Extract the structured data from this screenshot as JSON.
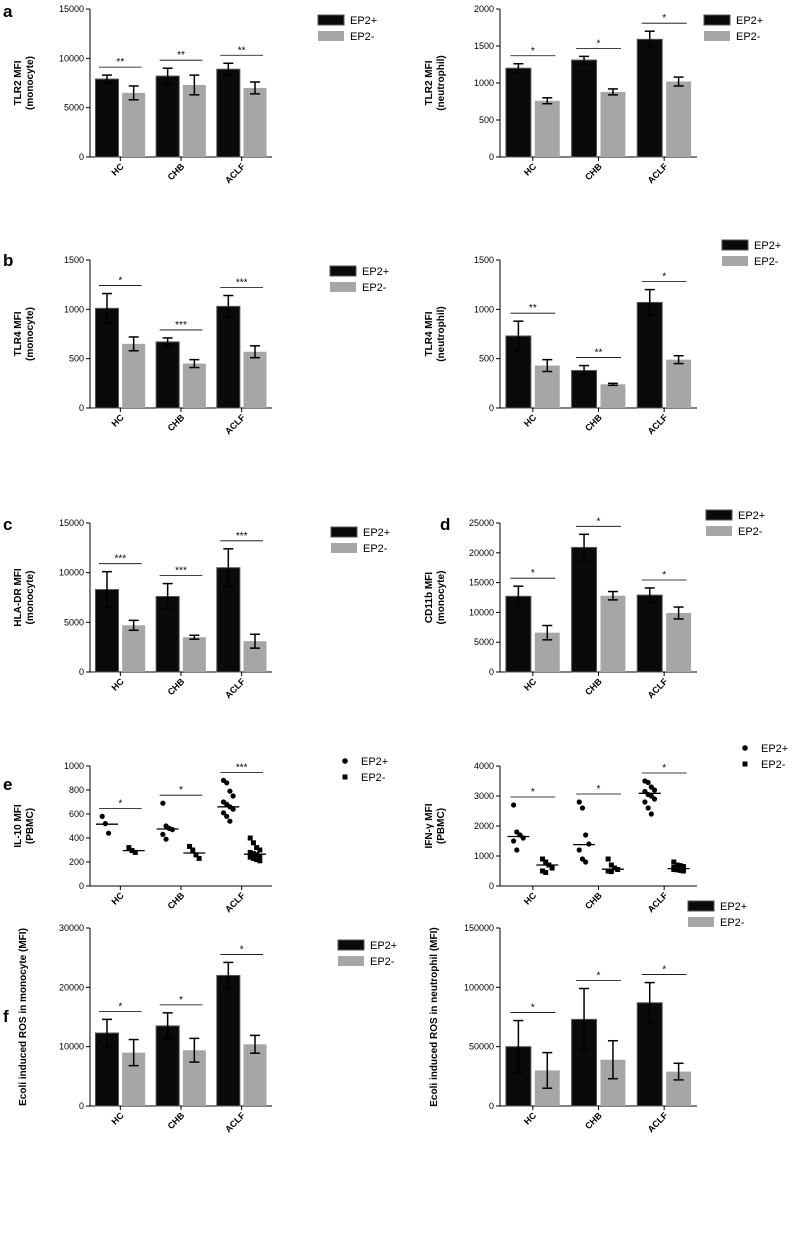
{
  "figure": {
    "panel_letters": [
      "a",
      "b",
      "c",
      "d",
      "e",
      "f"
    ],
    "colors": {
      "ep2_plus": "#0a0a0a",
      "ep2_minus": "#a6a6a6",
      "axis": "#000000"
    }
  },
  "chart_data": [
    {
      "id": "a-left",
      "type": "bar",
      "panel": "a",
      "categories": [
        "HC",
        "CHB",
        "ACLF"
      ],
      "series": [
        {
          "name": "EP2+",
          "values": [
            7900,
            8200,
            8900
          ],
          "errors": [
            400,
            800,
            600
          ]
        },
        {
          "name": "EP2-",
          "values": [
            6500,
            7300,
            7000
          ],
          "errors": [
            700,
            1000,
            600
          ]
        }
      ],
      "ylabel": [
        "TLR2 MFI",
        "(monocyte)"
      ],
      "ylim": [
        0,
        15000
      ],
      "yticks": [
        0,
        5000,
        10000,
        15000
      ],
      "significance": [
        "**",
        "**",
        "**"
      ],
      "legend": "right"
    },
    {
      "id": "a-right",
      "type": "bar",
      "panel": "a",
      "categories": [
        "HC",
        "CHB",
        "ACLF"
      ],
      "series": [
        {
          "name": "EP2+",
          "values": [
            1200,
            1310,
            1590
          ],
          "errors": [
            60,
            50,
            110
          ]
        },
        {
          "name": "EP2-",
          "values": [
            760,
            880,
            1020
          ],
          "errors": [
            40,
            40,
            60
          ]
        }
      ],
      "ylabel": [
        "TLR2 MFI",
        "(neutrophil)"
      ],
      "ylim": [
        0,
        2000
      ],
      "yticks": [
        0,
        500,
        1000,
        1500,
        2000
      ],
      "significance": [
        "*",
        "*",
        "*"
      ],
      "legend": "top-right"
    },
    {
      "id": "b-left",
      "type": "bar",
      "panel": "b",
      "categories": [
        "HC",
        "CHB",
        "ACLF"
      ],
      "series": [
        {
          "name": "EP2+",
          "values": [
            1010,
            670,
            1030
          ],
          "errors": [
            150,
            40,
            110
          ]
        },
        {
          "name": "EP2-",
          "values": [
            650,
            450,
            570
          ],
          "errors": [
            70,
            40,
            60
          ]
        }
      ],
      "ylabel": [
        "TLR4 MFI",
        "(monocyte)"
      ],
      "ylim": [
        0,
        1500
      ],
      "yticks": [
        0,
        500,
        1000,
        1500
      ],
      "significance": [
        "*",
        "***",
        "***"
      ],
      "legend": "right"
    },
    {
      "id": "b-right",
      "type": "bar",
      "panel": "b",
      "categories": [
        "HC",
        "CHB",
        "ACLF"
      ],
      "series": [
        {
          "name": "EP2+",
          "values": [
            730,
            380,
            1070
          ],
          "errors": [
            150,
            50,
            130
          ]
        },
        {
          "name": "EP2-",
          "values": [
            430,
            240,
            490
          ],
          "errors": [
            60,
            10,
            40
          ]
        }
      ],
      "ylabel": [
        "TLR4 MFI",
        "(neutrophil)"
      ],
      "ylim": [
        0,
        1500
      ],
      "yticks": [
        0,
        500,
        1000,
        1500
      ],
      "significance": [
        "**",
        "**",
        "*"
      ],
      "legend": "top-right"
    },
    {
      "id": "c",
      "type": "bar",
      "panel": "c",
      "categories": [
        "HC",
        "CHB",
        "ACLF"
      ],
      "series": [
        {
          "name": "EP2+",
          "values": [
            8300,
            7600,
            10500
          ],
          "errors": [
            1800,
            1300,
            1900
          ]
        },
        {
          "name": "EP2-",
          "values": [
            4700,
            3500,
            3100
          ],
          "errors": [
            500,
            200,
            700
          ]
        }
      ],
      "ylabel": [
        "HLA-DR MFI",
        "(monocyte)"
      ],
      "ylim": [
        0,
        15000
      ],
      "yticks": [
        0,
        5000,
        10000,
        15000
      ],
      "significance": [
        "***",
        "***",
        "***"
      ],
      "legend": "right"
    },
    {
      "id": "d",
      "type": "bar",
      "panel": "d",
      "categories": [
        "HC",
        "CHB",
        "ACLF"
      ],
      "series": [
        {
          "name": "EP2+",
          "values": [
            12700,
            20900,
            12900
          ],
          "errors": [
            1700,
            2200,
            1200
          ]
        },
        {
          "name": "EP2-",
          "values": [
            6600,
            12800,
            9900
          ],
          "errors": [
            1200,
            700,
            1000
          ]
        }
      ],
      "ylabel": [
        "CD11b MFI",
        "(monocyte)"
      ],
      "ylim": [
        0,
        25000
      ],
      "yticks": [
        0,
        5000,
        10000,
        15000,
        20000,
        25000
      ],
      "significance": [
        "*",
        "*",
        "*"
      ],
      "legend": "top-right"
    },
    {
      "id": "e-left",
      "type": "scatter",
      "panel": "e",
      "categories": [
        "HC",
        "CHB",
        "ACLF"
      ],
      "series": [
        {
          "name": "EP2+",
          "marker": "circle",
          "medians": [
            515,
            475,
            660
          ],
          "points": [
            [
              580,
              520,
              440
            ],
            [
              690,
              500,
              480,
              470,
              430,
              390
            ],
            [
              880,
              860,
              790,
              750,
              700,
              680,
              660,
              640,
              610,
              580,
              540
            ]
          ]
        },
        {
          "name": "EP2-",
          "marker": "square",
          "medians": [
            295,
            275,
            265
          ],
          "points": [
            [
              320,
              295,
              280
            ],
            [
              330,
              300,
              260,
              230
            ],
            [
              400,
              360,
              320,
              300,
              280,
              270,
              260,
              250,
              240,
              230,
              220,
              210
            ]
          ]
        }
      ],
      "ylabel": [
        "IL-10 MFI",
        "(PBMC)"
      ],
      "ylim": [
        0,
        1000
      ],
      "yticks": [
        0,
        200,
        400,
        600,
        800,
        1000
      ],
      "significance": [
        "*",
        "*",
        "***"
      ],
      "legend": "top-right"
    },
    {
      "id": "e-right",
      "type": "scatter",
      "panel": "e",
      "categories": [
        "HC",
        "CHB",
        "ACLF"
      ],
      "series": [
        {
          "name": "EP2+",
          "marker": "circle",
          "medians": [
            1650,
            1380,
            3090
          ],
          "points": [
            [
              2700,
              1800,
              1700,
              1600,
              1500,
              1200
            ],
            [
              2800,
              2600,
              1700,
              1400,
              1200,
              900,
              800
            ],
            [
              3500,
              3450,
              3300,
              3200,
              3150,
              3050,
              3000,
              2900,
              2800,
              2600,
              2400
            ]
          ]
        },
        {
          "name": "EP2-",
          "marker": "square",
          "medians": [
            700,
            560,
            580
          ],
          "points": [
            [
              900,
              800,
              700,
              600,
              500,
              450
            ],
            [
              900,
              700,
              600,
              550,
              500,
              480
            ],
            [
              800,
              700,
              680,
              650,
              620,
              600,
              580,
              560,
              550,
              540,
              520,
              500
            ]
          ]
        }
      ],
      "ylabel": [
        "IFN-γ MFI",
        "(PBMC)"
      ],
      "ylim": [
        0,
        4000
      ],
      "yticks": [
        0,
        1000,
        2000,
        3000,
        4000
      ],
      "significance": [
        "*",
        "*",
        "*"
      ],
      "legend": "top-right"
    },
    {
      "id": "f-left",
      "type": "bar",
      "panel": "f",
      "categories": [
        "HC",
        "CHB",
        "ACLF"
      ],
      "series": [
        {
          "name": "EP2+",
          "values": [
            12300,
            13500,
            22000
          ],
          "errors": [
            2300,
            2200,
            2200
          ]
        },
        {
          "name": "EP2-",
          "values": [
            9000,
            9400,
            10400
          ],
          "errors": [
            2200,
            2000,
            1500
          ]
        }
      ],
      "ylabel": [
        "Ecoli induced ROS in monocyte (MFI)"
      ],
      "ylim": [
        0,
        30000
      ],
      "yticks": [
        0,
        10000,
        20000,
        30000
      ],
      "significance": [
        "*",
        "*",
        "*"
      ],
      "legend": "right"
    },
    {
      "id": "f-right",
      "type": "bar",
      "panel": "f",
      "categories": [
        "HC",
        "CHB",
        "ACLF"
      ],
      "series": [
        {
          "name": "EP2+",
          "values": [
            50000,
            73000,
            87000
          ],
          "errors": [
            22000,
            26000,
            17000
          ]
        },
        {
          "name": "EP2-",
          "values": [
            30000,
            39000,
            29000
          ],
          "errors": [
            15000,
            16000,
            7000
          ]
        }
      ],
      "ylabel": [
        "Ecoli induced ROS in neutrophil (MFI)"
      ],
      "ylim": [
        0,
        150000
      ],
      "yticks": [
        0,
        50000,
        100000,
        150000
      ],
      "significance": [
        "*",
        "*",
        "*"
      ],
      "legend": "top-right"
    }
  ]
}
